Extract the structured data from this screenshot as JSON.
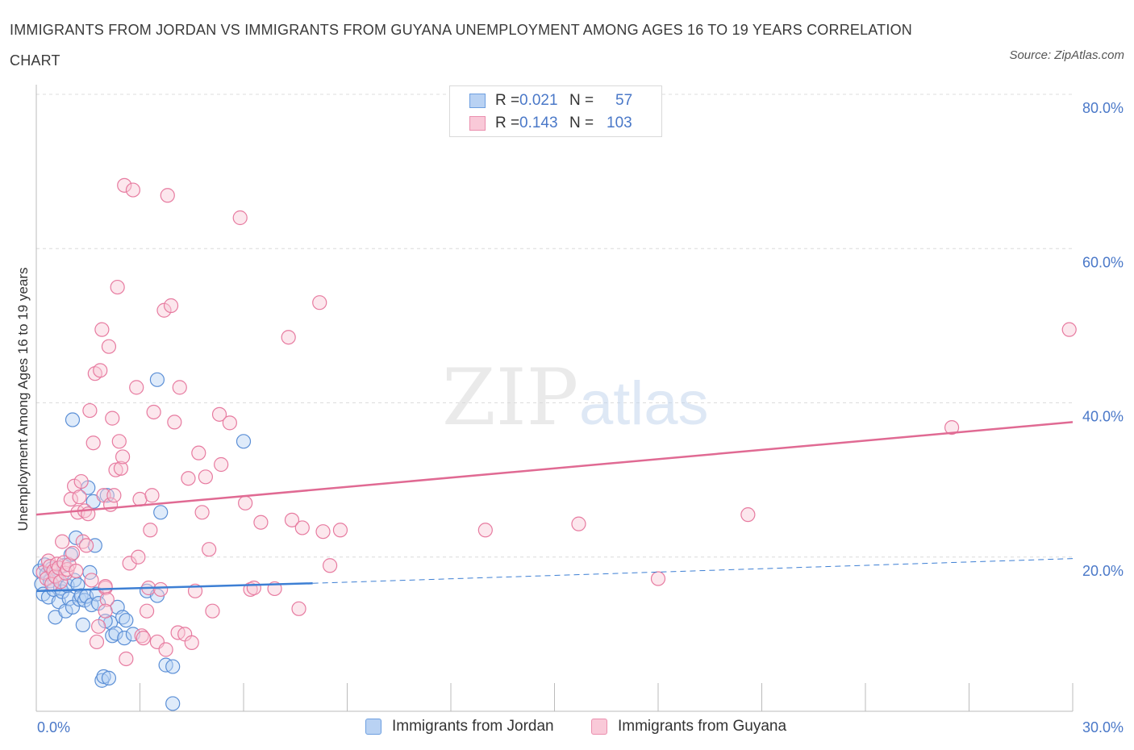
{
  "header": {
    "title": "IMMIGRANTS FROM JORDAN VS IMMIGRANTS FROM GUYANA UNEMPLOYMENT AMONG AGES 16 TO 19 YEARS CORRELATION CHART",
    "source": "Source: ZipAtlas.com"
  },
  "watermark": {
    "zip": "ZIP",
    "atlas": "atlas"
  },
  "stats_legend": {
    "rows": [
      {
        "r_label": "R =",
        "r_value": "0.021",
        "n_label": "N =",
        "n_value": "57",
        "color": "#6d9fe0",
        "fill": "#b9d2f3"
      },
      {
        "r_label": "R =",
        "r_value": "0.143",
        "n_label": "N =",
        "n_value": "103",
        "color": "#eb8fae",
        "fill": "#f9c9d8"
      }
    ]
  },
  "bottom_legend": {
    "items": [
      {
        "label": "Immigrants from Jordan",
        "color": "#6d9fe0",
        "fill": "#b9d2f3"
      },
      {
        "label": "Immigrants from Guyana",
        "color": "#eb8fae",
        "fill": "#f9c9d8"
      }
    ]
  },
  "chart_data": {
    "type": "scatter",
    "title": "IMMIGRANTS FROM JORDAN VS IMMIGRANTS FROM GUYANA UNEMPLOYMENT AMONG AGES 16 TO 19 YEARS CORRELATION CHART",
    "xlabel": "",
    "ylabel": "Unemployment Among Ages 16 to 19 years",
    "xlim": [
      0,
      30
    ],
    "ylim": [
      0,
      80
    ],
    "x_tick_labels": [
      "0.0%",
      "30.0%"
    ],
    "y_tick_values": [
      20,
      40,
      60,
      80
    ],
    "y_tick_labels": [
      "20.0%",
      "40.0%",
      "60.0%",
      "80.0%"
    ],
    "grid": true,
    "series": [
      {
        "name": "Immigrants from Jordan",
        "color": "#5b8fd6",
        "trend": {
          "x0": 0,
          "y0": 15.6,
          "x1": 8,
          "y1": 16.6,
          "dashed_to_x": 30,
          "dashed_to_y": 19.8
        },
        "points": [
          [
            0.1,
            18.2
          ],
          [
            0.15,
            16.5
          ],
          [
            0.2,
            15.2
          ],
          [
            0.25,
            19.0
          ],
          [
            0.3,
            17.8
          ],
          [
            0.35,
            14.8
          ],
          [
            0.4,
            16.9
          ],
          [
            0.45,
            18.5
          ],
          [
            0.5,
            15.8
          ],
          [
            0.55,
            12.2
          ],
          [
            0.6,
            17.3
          ],
          [
            0.65,
            14.2
          ],
          [
            0.7,
            16.0
          ],
          [
            0.75,
            15.5
          ],
          [
            0.8,
            18.9
          ],
          [
            0.85,
            13.0
          ],
          [
            0.9,
            16.3
          ],
          [
            0.95,
            14.6
          ],
          [
            1.0,
            20.3
          ],
          [
            1.05,
            13.5
          ],
          [
            1.1,
            17.0
          ],
          [
            1.15,
            22.5
          ],
          [
            1.2,
            16.4
          ],
          [
            1.25,
            14.5
          ],
          [
            1.3,
            15.0
          ],
          [
            1.35,
            11.2
          ],
          [
            1.4,
            14.4
          ],
          [
            1.45,
            14.9
          ],
          [
            1.55,
            18.0
          ],
          [
            1.6,
            13.8
          ],
          [
            1.65,
            27.2
          ],
          [
            1.7,
            21.5
          ],
          [
            1.75,
            15.2
          ],
          [
            1.8,
            14.0
          ],
          [
            1.5,
            29.0
          ],
          [
            1.05,
            37.8
          ],
          [
            1.9,
            4.0
          ],
          [
            1.95,
            4.5
          ],
          [
            2.1,
            4.3
          ],
          [
            2.15,
            11.5
          ],
          [
            2.2,
            9.8
          ],
          [
            2.3,
            10.1
          ],
          [
            2.05,
            28.0
          ],
          [
            2.0,
            11.7
          ],
          [
            2.35,
            13.5
          ],
          [
            2.5,
            12.2
          ],
          [
            2.6,
            11.8
          ],
          [
            2.55,
            9.5
          ],
          [
            2.8,
            10.0
          ],
          [
            3.2,
            15.6
          ],
          [
            3.5,
            15.0
          ],
          [
            3.75,
            6.0
          ],
          [
            3.95,
            5.8
          ],
          [
            3.5,
            43.0
          ],
          [
            3.6,
            25.8
          ],
          [
            3.95,
            1.0
          ],
          [
            6.0,
            35.0
          ]
        ]
      },
      {
        "name": "Immigrants from Guyana",
        "color": "#e77ba0",
        "trend": {
          "x0": 0,
          "y0": 25.5,
          "x1": 30,
          "y1": 37.5
        },
        "points": [
          [
            0.2,
            18.0
          ],
          [
            0.3,
            17.2
          ],
          [
            0.35,
            19.5
          ],
          [
            0.4,
            18.8
          ],
          [
            0.45,
            16.5
          ],
          [
            0.5,
            18.2
          ],
          [
            0.55,
            17.5
          ],
          [
            0.6,
            19.1
          ],
          [
            0.65,
            18.6
          ],
          [
            0.7,
            16.8
          ],
          [
            0.75,
            22.0
          ],
          [
            0.8,
            19.3
          ],
          [
            0.85,
            17.9
          ],
          [
            0.9,
            18.4
          ],
          [
            0.95,
            19.0
          ],
          [
            1.0,
            27.5
          ],
          [
            1.05,
            20.5
          ],
          [
            1.1,
            29.2
          ],
          [
            1.15,
            18.2
          ],
          [
            1.2,
            25.8
          ],
          [
            1.25,
            27.8
          ],
          [
            1.3,
            29.8
          ],
          [
            1.35,
            22.0
          ],
          [
            1.4,
            26.0
          ],
          [
            1.45,
            21.5
          ],
          [
            1.5,
            25.6
          ],
          [
            1.55,
            39.0
          ],
          [
            1.6,
            17.0
          ],
          [
            1.65,
            34.8
          ],
          [
            1.7,
            43.8
          ],
          [
            1.75,
            9.0
          ],
          [
            1.8,
            11.0
          ],
          [
            1.85,
            44.2
          ],
          [
            1.9,
            49.5
          ],
          [
            1.95,
            28.0
          ],
          [
            2.0,
            16.0
          ],
          [
            2.05,
            14.5
          ],
          [
            2.1,
            47.3
          ],
          [
            2.15,
            26.8
          ],
          [
            2.2,
            38.0
          ],
          [
            2.25,
            28.0
          ],
          [
            2.3,
            31.3
          ],
          [
            2.35,
            55.0
          ],
          [
            2.4,
            35.0
          ],
          [
            2.45,
            31.5
          ],
          [
            2.5,
            33.0
          ],
          [
            2.55,
            68.2
          ],
          [
            2.6,
            6.8
          ],
          [
            2.7,
            19.2
          ],
          [
            2.8,
            67.6
          ],
          [
            2.9,
            42.0
          ],
          [
            2.95,
            20.0
          ],
          [
            3.0,
            27.5
          ],
          [
            3.05,
            9.8
          ],
          [
            3.1,
            9.5
          ],
          [
            3.2,
            13.0
          ],
          [
            3.3,
            23.5
          ],
          [
            3.25,
            16.0
          ],
          [
            3.4,
            38.8
          ],
          [
            3.35,
            28.0
          ],
          [
            3.5,
            9.0
          ],
          [
            3.6,
            15.8
          ],
          [
            3.7,
            52.0
          ],
          [
            3.75,
            8.0
          ],
          [
            3.8,
            66.9
          ],
          [
            3.9,
            52.6
          ],
          [
            4.0,
            37.5
          ],
          [
            4.1,
            10.2
          ],
          [
            4.15,
            42.0
          ],
          [
            4.3,
            10.0
          ],
          [
            4.4,
            30.2
          ],
          [
            4.5,
            8.9
          ],
          [
            4.6,
            15.6
          ],
          [
            4.7,
            33.5
          ],
          [
            4.8,
            25.8
          ],
          [
            4.9,
            30.4
          ],
          [
            5.0,
            21.0
          ],
          [
            5.1,
            13.0
          ],
          [
            5.3,
            38.5
          ],
          [
            5.35,
            32.0
          ],
          [
            5.6,
            37.4
          ],
          [
            5.9,
            64.0
          ],
          [
            6.05,
            27.0
          ],
          [
            6.2,
            15.8
          ],
          [
            6.3,
            16.0
          ],
          [
            6.5,
            24.5
          ],
          [
            6.9,
            15.9
          ],
          [
            7.3,
            48.5
          ],
          [
            7.4,
            24.8
          ],
          [
            7.6,
            13.3
          ],
          [
            7.7,
            23.8
          ],
          [
            8.2,
            53.0
          ],
          [
            8.3,
            23.3
          ],
          [
            8.5,
            18.9
          ],
          [
            8.8,
            23.5
          ],
          [
            13.0,
            23.5
          ],
          [
            15.7,
            24.3
          ],
          [
            18.0,
            17.2
          ],
          [
            20.6,
            25.5
          ],
          [
            26.5,
            36.8
          ],
          [
            29.9,
            49.5
          ],
          [
            2.0,
            16.2
          ],
          [
            2.0,
            13.0
          ]
        ]
      }
    ]
  }
}
